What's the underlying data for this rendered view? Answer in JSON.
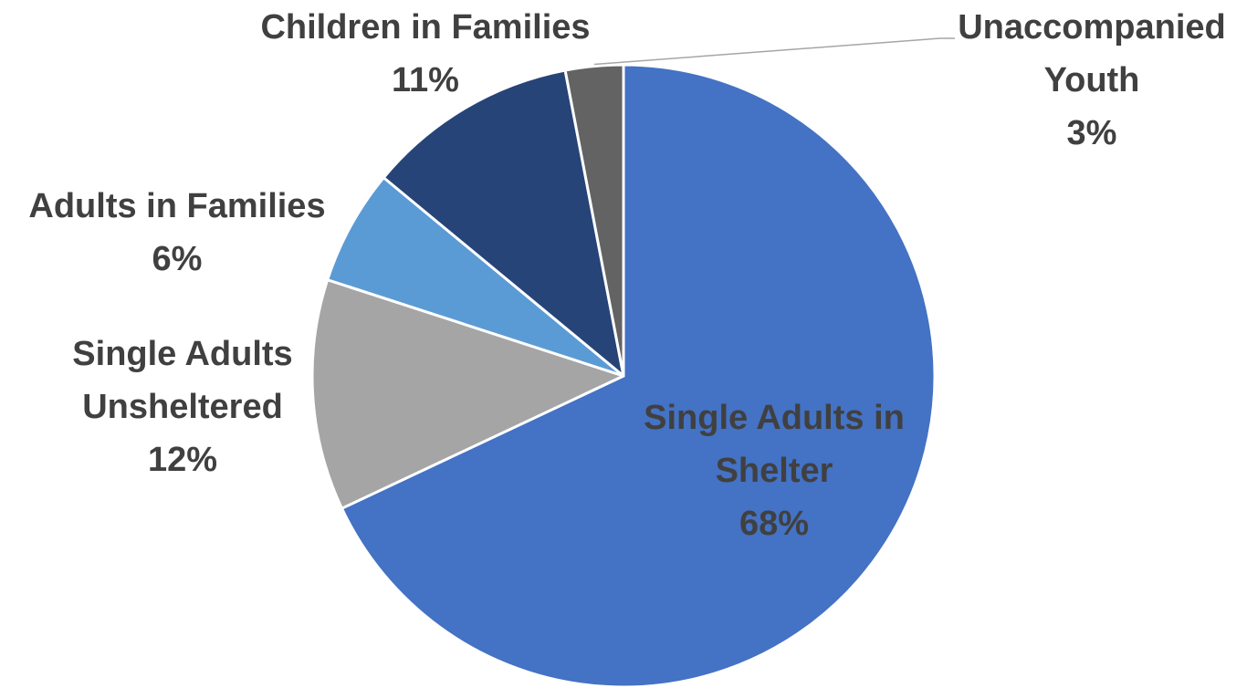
{
  "chart_data": {
    "type": "pie",
    "title": "",
    "start_angle_deg": 0,
    "direction": "clockwise",
    "slices": [
      {
        "label": "Single Adults in Shelter",
        "label_lines": [
          "Single Adults in",
          "Shelter"
        ],
        "value": 68,
        "display": "68%",
        "color": "#4472C4",
        "label_color": "#404040"
      },
      {
        "label": "Single Adults Unsheltered",
        "label_lines": [
          "Single Adults",
          "Unsheltered"
        ],
        "value": 12,
        "display": "12%",
        "color": "#A5A5A5",
        "label_color": "#404040"
      },
      {
        "label": "Adults in Families",
        "label_lines": [
          "Adults in Families"
        ],
        "value": 6,
        "display": "6%",
        "color": "#5B9BD5",
        "label_color": "#404040"
      },
      {
        "label": "Children in Families",
        "label_lines": [
          "Children in Families"
        ],
        "value": 11,
        "display": "11%",
        "color": "#264478",
        "label_color": "#404040"
      },
      {
        "label": "Unaccompanied Youth",
        "label_lines": [
          "Unaccompanied",
          "Youth"
        ],
        "value": 3,
        "display": "3%",
        "color": "#636363",
        "label_color": "#404040"
      }
    ]
  }
}
